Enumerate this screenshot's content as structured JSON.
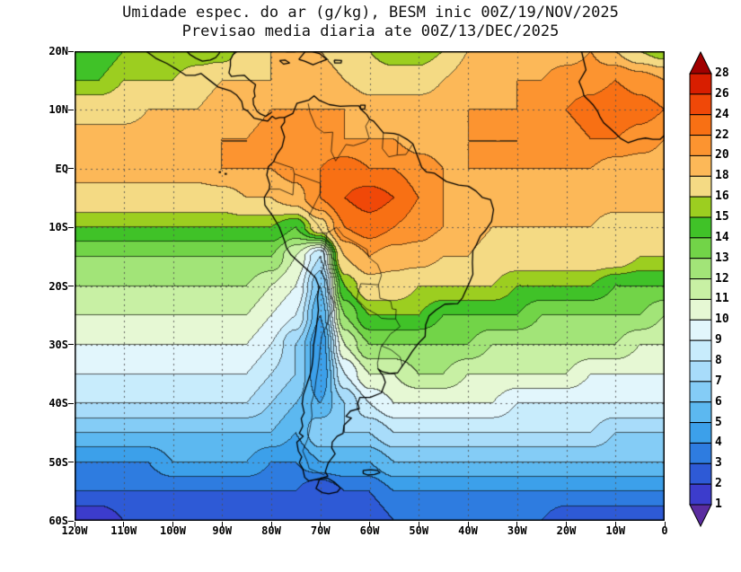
{
  "chart_data": {
    "type": "heatmap",
    "title": "Umidade espec. do ar (g/kg), BESM inic 00Z/19/NOV/2025",
    "subtitle": "Previsao media diaria ate 00Z/13/DEC/2025",
    "units": "g/kg",
    "x_axis": {
      "ticks": [
        "120W",
        "110W",
        "100W",
        "90W",
        "80W",
        "70W",
        "60W",
        "50W",
        "40W",
        "30W",
        "20W",
        "10W",
        "0"
      ],
      "range_deg": [
        -120,
        0
      ]
    },
    "y_axis": {
      "ticks": [
        "20N",
        "10N",
        "EQ",
        "10S",
        "20S",
        "30S",
        "40S",
        "50S",
        "60S"
      ],
      "range_deg": [
        20,
        -60
      ]
    },
    "colorbar": {
      "tick_labels": [
        "28",
        "26",
        "24",
        "22",
        "20",
        "18",
        "16",
        "15",
        "14",
        "13",
        "12",
        "11",
        "10",
        "9",
        "8",
        "7",
        "6",
        "5",
        "4",
        "3",
        "2",
        "1"
      ],
      "boundaries": [
        1,
        2,
        3,
        4,
        5,
        6,
        7,
        8,
        9,
        10,
        11,
        12,
        13,
        14,
        15,
        16,
        18,
        20,
        22,
        24,
        26,
        28
      ],
      "colors_low_to_high": [
        "#5a2ca0",
        "#3c3ccc",
        "#2e5ad6",
        "#2e7ce0",
        "#3ca0ea",
        "#5cb8f0",
        "#84ccf6",
        "#a8dcfa",
        "#c8ecfc",
        "#e2f6fc",
        "#e6f8d4",
        "#c8f0a4",
        "#a2e478",
        "#72d448",
        "#40c228",
        "#9cce20",
        "#f4da84",
        "#fcb858",
        "#fc9430",
        "#f87014",
        "#f04808",
        "#d81e00",
        "#a00000"
      ],
      "arrow_top_color": "#a00000",
      "arrow_bottom_color": "#5a2ca0"
    },
    "grid": {
      "lon_start": -120,
      "lon_step": 5,
      "lat_start": 20,
      "lat_step": -5,
      "values": [
        [
          14,
          14,
          15,
          15,
          15,
          15,
          15,
          17,
          18,
          18,
          18,
          17,
          16,
          15,
          15,
          16,
          18,
          18,
          18,
          19,
          19,
          20,
          18,
          16,
          15
        ],
        [
          15,
          15,
          16,
          16,
          16,
          17,
          18,
          18,
          18,
          19,
          19,
          18,
          17,
          17,
          17,
          18,
          19,
          19,
          20,
          20,
          21,
          21,
          22,
          21,
          20
        ],
        [
          17,
          17,
          17,
          18,
          18,
          18,
          19,
          19,
          20,
          20,
          20,
          20,
          19,
          19,
          19,
          19,
          20,
          20,
          20,
          21,
          22,
          23,
          24,
          23,
          22
        ],
        [
          19,
          19,
          19,
          19,
          19,
          20,
          20,
          20,
          21,
          21,
          21,
          20,
          20,
          20,
          19,
          19,
          20,
          20,
          20,
          21,
          21,
          22,
          22,
          21,
          20
        ],
        [
          19,
          19,
          19,
          19,
          19,
          19,
          20,
          20,
          20,
          21,
          22,
          23,
          22,
          22,
          21,
          20,
          20,
          20,
          20,
          20,
          20,
          20,
          19,
          19,
          19
        ],
        [
          17,
          17,
          17,
          17,
          17,
          17,
          17,
          18,
          18,
          19,
          22,
          24,
          25,
          24,
          22,
          20,
          19,
          19,
          19,
          19,
          19,
          19,
          19,
          19,
          19
        ],
        [
          15,
          15,
          15,
          15,
          15,
          15,
          15,
          15,
          15,
          14,
          17,
          22,
          23,
          22,
          21,
          20,
          19,
          18,
          18,
          18,
          18,
          18,
          17,
          17,
          17
        ],
        [
          13,
          13,
          13,
          13,
          13,
          13,
          13,
          13,
          13,
          11,
          8,
          18,
          20,
          19,
          19,
          18,
          18,
          17,
          17,
          17,
          17,
          17,
          17,
          16,
          16
        ],
        [
          12,
          12,
          12,
          12,
          12,
          12,
          12,
          12,
          11,
          10,
          6,
          15,
          17,
          17,
          16,
          16,
          16,
          16,
          15,
          15,
          15,
          15,
          14,
          14,
          14
        ],
        [
          11,
          11,
          11,
          11,
          11,
          11,
          11,
          11,
          10,
          9,
          5,
          13,
          15,
          15,
          15,
          14,
          14,
          14,
          14,
          13,
          13,
          13,
          13,
          13,
          12
        ],
        [
          10,
          10,
          10,
          10,
          10,
          10,
          10,
          10,
          9,
          7,
          4,
          11,
          13,
          13,
          13,
          13,
          13,
          12,
          12,
          12,
          12,
          12,
          12,
          11,
          11
        ],
        [
          9,
          9,
          9,
          9,
          9,
          9,
          9,
          9,
          8,
          7,
          4,
          9,
          11,
          11,
          12,
          12,
          11,
          11,
          11,
          11,
          11,
          10,
          10,
          10,
          10
        ],
        [
          8,
          8,
          8,
          8,
          8,
          8,
          8,
          8,
          7,
          6,
          5,
          7,
          9,
          10,
          10,
          10,
          10,
          10,
          9,
          9,
          9,
          9,
          9,
          9,
          9
        ],
        [
          6,
          6,
          6,
          6,
          6,
          6,
          6,
          6,
          6,
          5,
          7,
          7,
          7,
          8,
          8,
          8,
          8,
          8,
          8,
          8,
          8,
          8,
          7,
          7,
          7
        ],
        [
          4,
          4,
          4,
          4,
          5,
          5,
          5,
          5,
          4,
          4,
          5,
          5,
          5,
          6,
          6,
          6,
          6,
          6,
          6,
          6,
          6,
          6,
          6,
          6,
          6
        ],
        [
          3,
          3,
          3,
          3,
          3,
          3,
          3,
          3,
          3,
          3,
          2,
          3,
          3,
          4,
          4,
          4,
          4,
          4,
          4,
          4,
          4,
          4,
          4,
          4,
          4
        ],
        [
          1,
          1,
          2,
          2,
          2,
          2,
          2,
          2,
          2,
          2,
          2,
          2,
          2,
          3,
          3,
          3,
          3,
          3,
          3,
          3,
          2,
          2,
          2,
          2,
          2
        ]
      ]
    }
  }
}
